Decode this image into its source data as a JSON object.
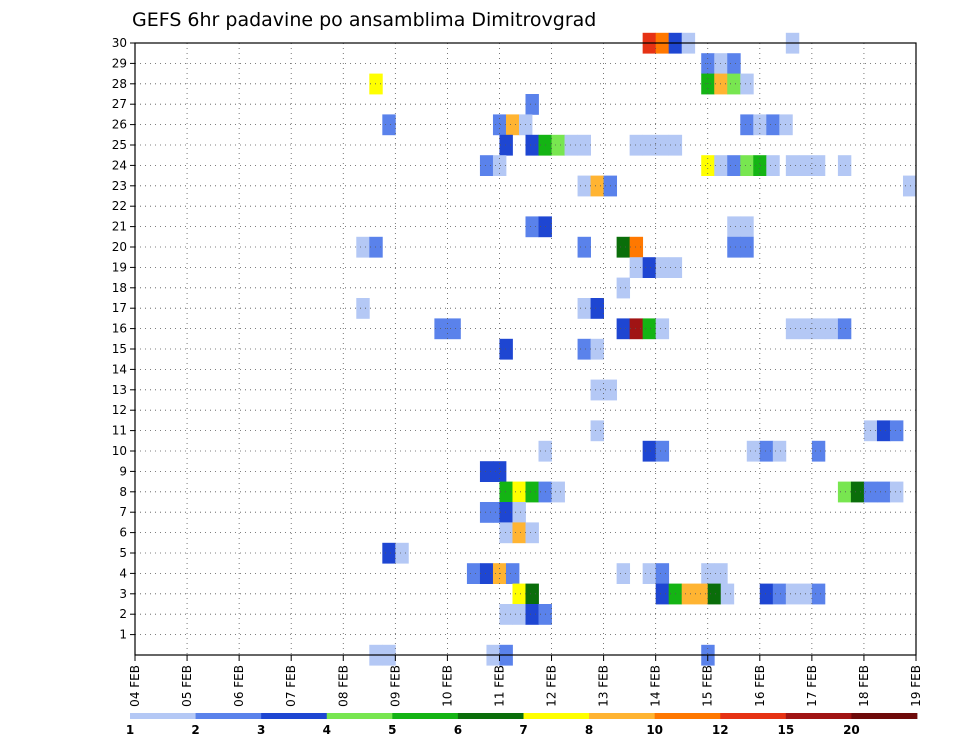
{
  "chart_data": {
    "type": "heatmap",
    "title": "GEFS 6hr padavine po ansamblima Dimitrovgrad",
    "xlabel": "",
    "ylabel": "",
    "x_tick_labels": [
      "04 FEB",
      "05 FEB",
      "06 FEB",
      "07 FEB",
      "08 FEB",
      "09 FEB",
      "10 FEB",
      "11 FEB",
      "12 FEB",
      "13 FEB",
      "14 FEB",
      "15 FEB",
      "16 FEB",
      "17 FEB",
      "18 FEB",
      "19 FEB"
    ],
    "x_range_days": [
      0,
      15
    ],
    "y_tick_labels": [
      "1",
      "2",
      "3",
      "4",
      "5",
      "6",
      "7",
      "8",
      "9",
      "10",
      "11",
      "12",
      "13",
      "14",
      "15",
      "16",
      "17",
      "18",
      "19",
      "20",
      "21",
      "22",
      "23",
      "24",
      "25",
      "26",
      "27",
      "28",
      "29",
      "30"
    ],
    "y_range": [
      0,
      30
    ],
    "grid": true,
    "legend": {
      "placement": "bottom",
      "thresholds": [
        "1",
        "2",
        "3",
        "4",
        "5",
        "6",
        "7",
        "8",
        "10",
        "12",
        "15",
        "20"
      ],
      "colors": [
        "#b4c8f5",
        "#5a82eb",
        "#1e46d2",
        "#78e650",
        "#14b414",
        "#0a6e0a",
        "#ffff00",
        "#ffb432",
        "#ff7800",
        "#e63214",
        "#a01414",
        "#6e0a0a"
      ]
    },
    "cells": [
      {
        "member": 30,
        "day": 9.875,
        "cls": 10
      },
      {
        "member": 30,
        "day": 10.125,
        "cls": 9
      },
      {
        "member": 30,
        "day": 10.375,
        "cls": 3
      },
      {
        "member": 30,
        "day": 10.625,
        "cls": 1
      },
      {
        "member": 30,
        "day": 12.625,
        "cls": 1
      },
      {
        "member": 29,
        "day": 11.0,
        "cls": 2
      },
      {
        "member": 29,
        "day": 11.25,
        "cls": 1
      },
      {
        "member": 29,
        "day": 11.5,
        "cls": 2
      },
      {
        "member": 28,
        "day": 4.625,
        "cls": 7
      },
      {
        "member": 28,
        "day": 11.0,
        "cls": 5
      },
      {
        "member": 28,
        "day": 11.25,
        "cls": 8
      },
      {
        "member": 28,
        "day": 11.5,
        "cls": 4
      },
      {
        "member": 28,
        "day": 11.75,
        "cls": 1
      },
      {
        "member": 27,
        "day": 7.625,
        "cls": 2
      },
      {
        "member": 26,
        "day": 4.875,
        "cls": 2
      },
      {
        "member": 26,
        "day": 7.0,
        "cls": 2
      },
      {
        "member": 26,
        "day": 7.25,
        "cls": 8
      },
      {
        "member": 26,
        "day": 7.5,
        "cls": 1
      },
      {
        "member": 26,
        "day": 11.75,
        "cls": 2
      },
      {
        "member": 26,
        "day": 12.0,
        "cls": 1
      },
      {
        "member": 26,
        "day": 12.25,
        "cls": 2
      },
      {
        "member": 26,
        "day": 12.5,
        "cls": 1
      },
      {
        "member": 25,
        "day": 7.125,
        "cls": 3
      },
      {
        "member": 25,
        "day": 7.625,
        "cls": 3
      },
      {
        "member": 25,
        "day": 7.875,
        "cls": 5
      },
      {
        "member": 25,
        "day": 8.125,
        "cls": 4
      },
      {
        "member": 25,
        "day": 8.375,
        "cls": 1
      },
      {
        "member": 25,
        "day": 8.625,
        "cls": 1
      },
      {
        "member": 25,
        "day": 9.625,
        "cls": 1
      },
      {
        "member": 25,
        "day": 9.875,
        "cls": 1
      },
      {
        "member": 25,
        "day": 10.125,
        "cls": 1
      },
      {
        "member": 25,
        "day": 10.375,
        "cls": 1
      },
      {
        "member": 24,
        "day": 6.75,
        "cls": 2
      },
      {
        "member": 24,
        "day": 7.0,
        "cls": 1
      },
      {
        "member": 24,
        "day": 11.0,
        "cls": 7
      },
      {
        "member": 24,
        "day": 11.25,
        "cls": 1
      },
      {
        "member": 24,
        "day": 11.5,
        "cls": 2
      },
      {
        "member": 24,
        "day": 11.75,
        "cls": 4
      },
      {
        "member": 24,
        "day": 12.0,
        "cls": 5
      },
      {
        "member": 24,
        "day": 12.25,
        "cls": 1
      },
      {
        "member": 24,
        "day": 12.625,
        "cls": 1
      },
      {
        "member": 24,
        "day": 12.875,
        "cls": 1
      },
      {
        "member": 24,
        "day": 13.125,
        "cls": 1
      },
      {
        "member": 24,
        "day": 13.625,
        "cls": 1
      },
      {
        "member": 23,
        "day": 8.625,
        "cls": 1
      },
      {
        "member": 23,
        "day": 8.875,
        "cls": 8
      },
      {
        "member": 23,
        "day": 9.125,
        "cls": 2
      },
      {
        "member": 23,
        "day": 14.875,
        "cls": 1
      },
      {
        "member": 21,
        "day": 7.625,
        "cls": 2
      },
      {
        "member": 21,
        "day": 7.875,
        "cls": 3
      },
      {
        "member": 21,
        "day": 11.5,
        "cls": 1
      },
      {
        "member": 21,
        "day": 11.75,
        "cls": 1
      },
      {
        "member": 20,
        "day": 4.375,
        "cls": 1
      },
      {
        "member": 20,
        "day": 4.625,
        "cls": 2
      },
      {
        "member": 20,
        "day": 8.625,
        "cls": 2
      },
      {
        "member": 20,
        "day": 9.375,
        "cls": 6
      },
      {
        "member": 20,
        "day": 9.625,
        "cls": 9
      },
      {
        "member": 20,
        "day": 11.5,
        "cls": 2
      },
      {
        "member": 20,
        "day": 11.75,
        "cls": 2
      },
      {
        "member": 19,
        "day": 9.625,
        "cls": 1
      },
      {
        "member": 19,
        "day": 9.875,
        "cls": 3
      },
      {
        "member": 19,
        "day": 10.125,
        "cls": 1
      },
      {
        "member": 19,
        "day": 10.375,
        "cls": 1
      },
      {
        "member": 18,
        "day": 9.375,
        "cls": 1
      },
      {
        "member": 17,
        "day": 4.375,
        "cls": 1
      },
      {
        "member": 17,
        "day": 8.625,
        "cls": 1
      },
      {
        "member": 17,
        "day": 8.875,
        "cls": 3
      },
      {
        "member": 16,
        "day": 5.875,
        "cls": 2
      },
      {
        "member": 16,
        "day": 6.125,
        "cls": 2
      },
      {
        "member": 16,
        "day": 9.375,
        "cls": 3
      },
      {
        "member": 16,
        "day": 9.625,
        "cls": 11
      },
      {
        "member": 16,
        "day": 9.875,
        "cls": 5
      },
      {
        "member": 16,
        "day": 10.125,
        "cls": 1
      },
      {
        "member": 16,
        "day": 12.625,
        "cls": 1
      },
      {
        "member": 16,
        "day": 12.875,
        "cls": 1
      },
      {
        "member": 16,
        "day": 13.125,
        "cls": 1
      },
      {
        "member": 16,
        "day": 13.375,
        "cls": 1
      },
      {
        "member": 16,
        "day": 13.625,
        "cls": 2
      },
      {
        "member": 15,
        "day": 7.125,
        "cls": 3
      },
      {
        "member": 15,
        "day": 8.625,
        "cls": 2
      },
      {
        "member": 15,
        "day": 8.875,
        "cls": 1
      },
      {
        "member": 13,
        "day": 8.875,
        "cls": 1
      },
      {
        "member": 13,
        "day": 9.125,
        "cls": 1
      },
      {
        "member": 11,
        "day": 8.875,
        "cls": 1
      },
      {
        "member": 11,
        "day": 14.125,
        "cls": 1
      },
      {
        "member": 11,
        "day": 14.375,
        "cls": 3
      },
      {
        "member": 11,
        "day": 14.625,
        "cls": 2
      },
      {
        "member": 10,
        "day": 7.875,
        "cls": 1
      },
      {
        "member": 10,
        "day": 9.875,
        "cls": 3
      },
      {
        "member": 10,
        "day": 10.125,
        "cls": 2
      },
      {
        "member": 10,
        "day": 11.875,
        "cls": 1
      },
      {
        "member": 10,
        "day": 12.125,
        "cls": 2
      },
      {
        "member": 10,
        "day": 12.375,
        "cls": 1
      },
      {
        "member": 10,
        "day": 13.125,
        "cls": 2
      },
      {
        "member": 9,
        "day": 6.75,
        "cls": 3
      },
      {
        "member": 9,
        "day": 7.0,
        "cls": 3
      },
      {
        "member": 8,
        "day": 7.125,
        "cls": 5
      },
      {
        "member": 8,
        "day": 7.375,
        "cls": 7
      },
      {
        "member": 8,
        "day": 7.625,
        "cls": 5
      },
      {
        "member": 8,
        "day": 7.875,
        "cls": 2
      },
      {
        "member": 8,
        "day": 8.125,
        "cls": 1
      },
      {
        "member": 8,
        "day": 13.625,
        "cls": 4
      },
      {
        "member": 8,
        "day": 13.875,
        "cls": 6
      },
      {
        "member": 8,
        "day": 14.125,
        "cls": 2
      },
      {
        "member": 8,
        "day": 14.375,
        "cls": 2
      },
      {
        "member": 8,
        "day": 14.625,
        "cls": 1
      },
      {
        "member": 7,
        "day": 6.75,
        "cls": 2
      },
      {
        "member": 7,
        "day": 7.0,
        "cls": 2
      },
      {
        "member": 7,
        "day": 7.125,
        "cls": 3
      },
      {
        "member": 7,
        "day": 7.375,
        "cls": 1
      },
      {
        "member": 6,
        "day": 7.125,
        "cls": 1
      },
      {
        "member": 6,
        "day": 7.375,
        "cls": 8
      },
      {
        "member": 6,
        "day": 7.625,
        "cls": 1
      },
      {
        "member": 5,
        "day": 4.875,
        "cls": 3
      },
      {
        "member": 5,
        "day": 5.125,
        "cls": 1
      },
      {
        "member": 4,
        "day": 6.5,
        "cls": 2
      },
      {
        "member": 4,
        "day": 6.75,
        "cls": 3
      },
      {
        "member": 4,
        "day": 7.0,
        "cls": 8
      },
      {
        "member": 4,
        "day": 7.25,
        "cls": 2
      },
      {
        "member": 4,
        "day": 9.375,
        "cls": 1
      },
      {
        "member": 4,
        "day": 9.875,
        "cls": 1
      },
      {
        "member": 4,
        "day": 10.125,
        "cls": 2
      },
      {
        "member": 4,
        "day": 11.0,
        "cls": 1
      },
      {
        "member": 4,
        "day": 11.25,
        "cls": 1
      },
      {
        "member": 3,
        "day": 7.375,
        "cls": 7
      },
      {
        "member": 3,
        "day": 7.625,
        "cls": 6
      },
      {
        "member": 3,
        "day": 10.125,
        "cls": 3
      },
      {
        "member": 3,
        "day": 10.375,
        "cls": 5
      },
      {
        "member": 3,
        "day": 10.625,
        "cls": 8
      },
      {
        "member": 3,
        "day": 10.875,
        "cls": 8
      },
      {
        "member": 3,
        "day": 11.125,
        "cls": 6
      },
      {
        "member": 3,
        "day": 11.375,
        "cls": 1
      },
      {
        "member": 3,
        "day": 12.125,
        "cls": 3
      },
      {
        "member": 3,
        "day": 12.375,
        "cls": 2
      },
      {
        "member": 3,
        "day": 12.625,
        "cls": 1
      },
      {
        "member": 3,
        "day": 12.875,
        "cls": 1
      },
      {
        "member": 3,
        "day": 13.125,
        "cls": 2
      },
      {
        "member": 2,
        "day": 7.125,
        "cls": 1
      },
      {
        "member": 2,
        "day": 7.375,
        "cls": 1
      },
      {
        "member": 2,
        "day": 7.625,
        "cls": 3
      },
      {
        "member": 2,
        "day": 7.875,
        "cls": 2
      },
      {
        "member": 0,
        "day": 4.625,
        "cls": 1
      },
      {
        "member": 0,
        "day": 4.875,
        "cls": 1
      },
      {
        "member": 0,
        "day": 6.875,
        "cls": 1
      },
      {
        "member": 0,
        "day": 7.125,
        "cls": 2
      },
      {
        "member": 0,
        "day": 11.0,
        "cls": 2
      }
    ]
  }
}
